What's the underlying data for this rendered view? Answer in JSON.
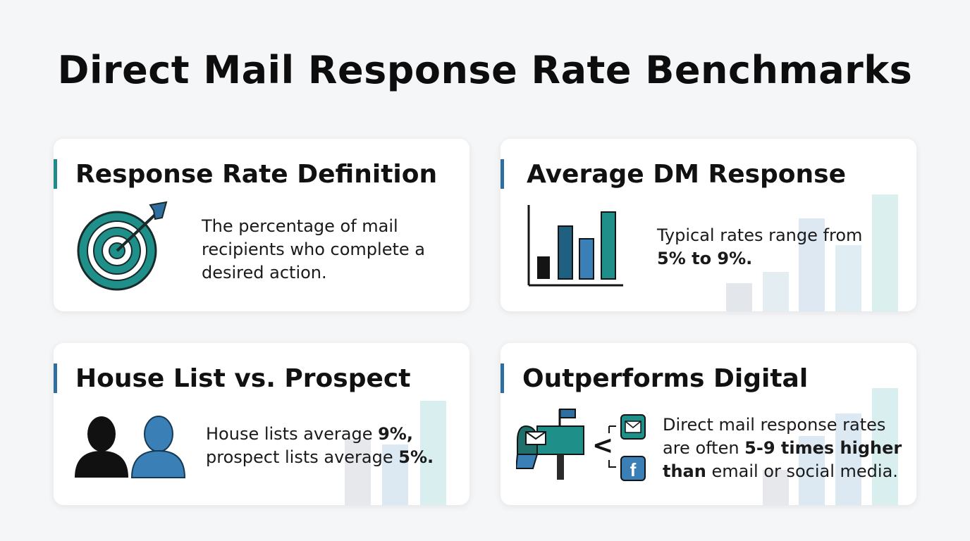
{
  "page": {
    "title": "Direct Mail Response Rate Benchmarks"
  },
  "cards": {
    "definition": {
      "title": "Response Rate Definition",
      "text": "The percentage of mail recipients who complete a desired action.",
      "icon": "target-icon"
    },
    "average": {
      "title": "Average DM Response",
      "text_prefix": "Typical rates range from",
      "text_bold": "5% to 9%.",
      "icon": "bar-chart-icon"
    },
    "house_list": {
      "title": "House List vs. Prospect",
      "text_1": "House lists average ",
      "bold_1": "9%,",
      "text_2": "prospect lists average ",
      "bold_2": "5%.",
      "icon": "people-icon"
    },
    "digital": {
      "title": "Outperforms Digital",
      "text_1": "Direct mail response rates",
      "text_2": "are often ",
      "bold_1": "5-9 times higher",
      "bold_2": "than",
      "text_3": " email or social media.",
      "comparison_symbol": "<",
      "icon": "mailbox-icon"
    }
  },
  "colors": {
    "accent_teal": "#1e8a8a",
    "accent_blue": "#2f6f9f",
    "dark_teal": "#1f6f6c",
    "mid_blue": "#3a7fb5",
    "text": "#141414"
  }
}
